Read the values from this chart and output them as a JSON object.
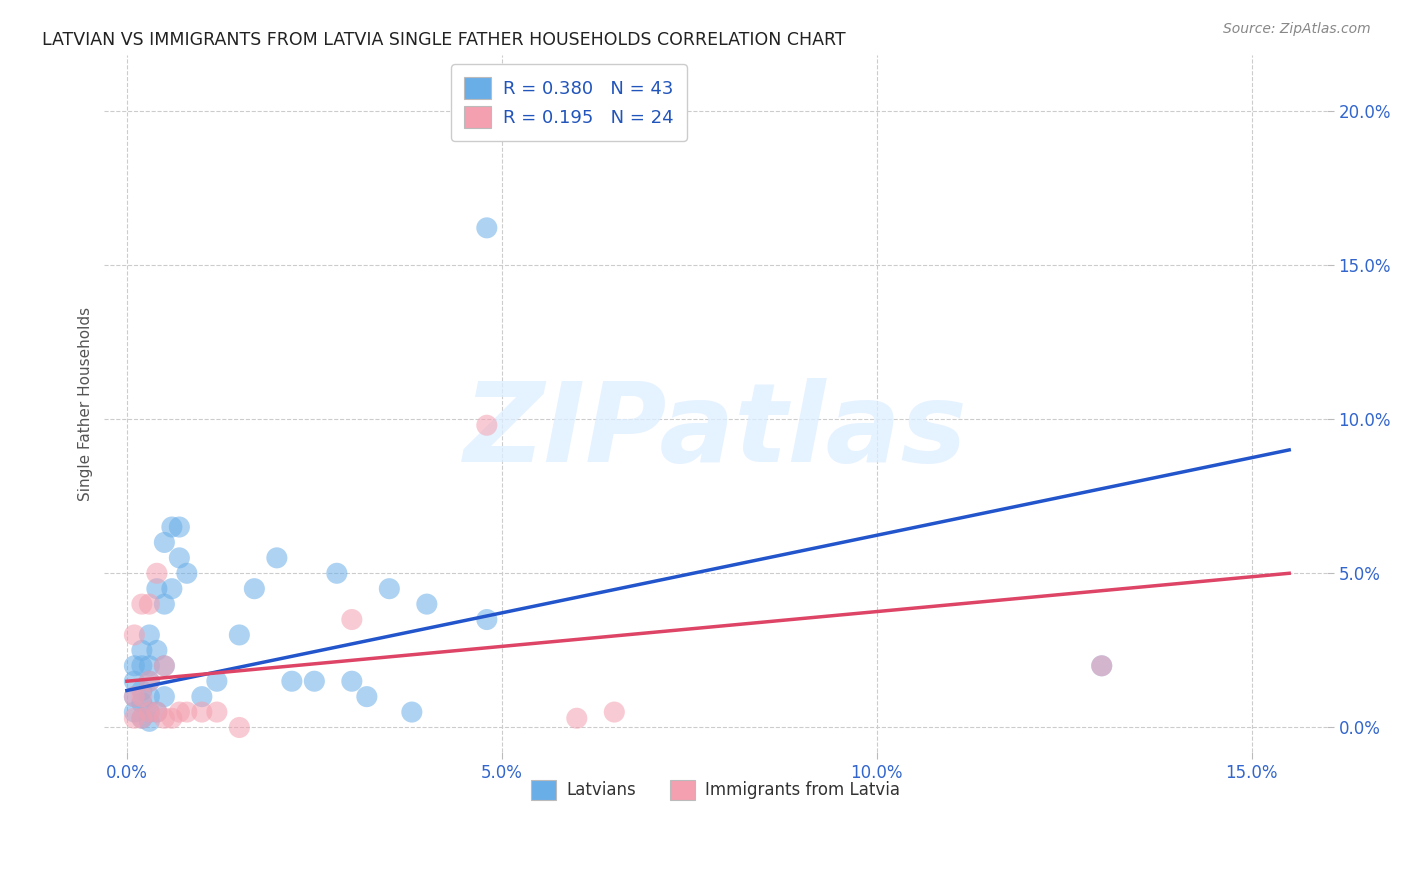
{
  "title": "LATVIAN VS IMMIGRANTS FROM LATVIA SINGLE FATHER HOUSEHOLDS CORRELATION CHART",
  "source": "Source: ZipAtlas.com",
  "ylabel": "Single Father Households",
  "x_tick_labels": [
    "0.0%",
    "5.0%",
    "10.0%",
    "15.0%"
  ],
  "x_tick_vals": [
    0.0,
    0.05,
    0.1,
    0.15
  ],
  "y_tick_labels": [
    "0.0%",
    "5.0%",
    "10.0%",
    "15.0%",
    "20.0%"
  ],
  "y_tick_vals": [
    0.0,
    0.05,
    0.1,
    0.15,
    0.2
  ],
  "xlim": [
    -0.003,
    0.16
  ],
  "ylim": [
    -0.008,
    0.218
  ],
  "blue_R": 0.38,
  "blue_N": 43,
  "pink_R": 0.195,
  "pink_N": 24,
  "blue_color": "#6aaee8",
  "pink_color": "#f4a0b0",
  "blue_line_color": "#2255cc",
  "pink_line_color": "#dd4466",
  "watermark": "ZIPatlas",
  "blue_line_x0": 0.0,
  "blue_line_y0": 0.012,
  "blue_line_x1": 0.155,
  "blue_line_y1": 0.09,
  "pink_line_x0": 0.0,
  "pink_line_y0": 0.015,
  "pink_line_x1": 0.155,
  "pink_line_y1": 0.05,
  "blue_x": [
    0.001,
    0.001,
    0.001,
    0.001,
    0.002,
    0.002,
    0.002,
    0.002,
    0.002,
    0.003,
    0.003,
    0.003,
    0.003,
    0.003,
    0.003,
    0.004,
    0.004,
    0.004,
    0.005,
    0.005,
    0.005,
    0.005,
    0.006,
    0.006,
    0.007,
    0.007,
    0.008,
    0.01,
    0.012,
    0.015,
    0.017,
    0.02,
    0.022,
    0.025,
    0.028,
    0.03,
    0.032,
    0.035,
    0.038,
    0.04,
    0.048,
    0.048,
    0.13
  ],
  "blue_y": [
    0.005,
    0.01,
    0.015,
    0.02,
    0.003,
    0.008,
    0.012,
    0.02,
    0.025,
    0.002,
    0.005,
    0.01,
    0.015,
    0.02,
    0.03,
    0.005,
    0.025,
    0.045,
    0.01,
    0.02,
    0.04,
    0.06,
    0.045,
    0.065,
    0.055,
    0.065,
    0.05,
    0.01,
    0.015,
    0.03,
    0.045,
    0.055,
    0.015,
    0.015,
    0.05,
    0.015,
    0.01,
    0.045,
    0.005,
    0.04,
    0.035,
    0.162,
    0.02
  ],
  "pink_x": [
    0.001,
    0.001,
    0.001,
    0.002,
    0.002,
    0.002,
    0.003,
    0.003,
    0.003,
    0.004,
    0.004,
    0.005,
    0.005,
    0.006,
    0.007,
    0.008,
    0.01,
    0.012,
    0.015,
    0.03,
    0.048,
    0.06,
    0.065,
    0.13
  ],
  "pink_y": [
    0.003,
    0.01,
    0.03,
    0.003,
    0.01,
    0.04,
    0.005,
    0.015,
    0.04,
    0.005,
    0.05,
    0.003,
    0.02,
    0.003,
    0.005,
    0.005,
    0.005,
    0.005,
    0.0,
    0.035,
    0.098,
    0.003,
    0.005,
    0.02
  ]
}
